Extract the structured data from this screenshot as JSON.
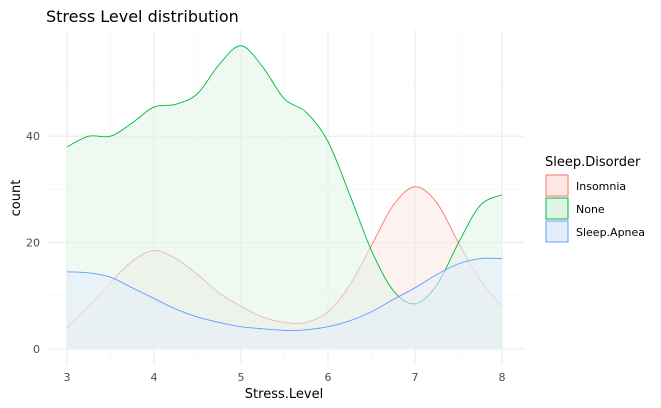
{
  "chart_data": {
    "type": "area",
    "title": "Stress Level distribution",
    "xlabel": "Stress.Level",
    "ylabel": "count",
    "xlim": [
      3,
      8
    ],
    "ylim": [
      0,
      58
    ],
    "x_ticks": [
      3,
      4,
      5,
      6,
      7,
      8
    ],
    "y_ticks": [
      0,
      20,
      40
    ],
    "grid": true,
    "legend": {
      "title": "Sleep.Disorder",
      "position": "right",
      "entries": [
        "Insomnia",
        "None",
        "Sleep.Apnea"
      ]
    },
    "series": [
      {
        "name": "Insomnia",
        "line_color": "#f8766d",
        "fill_color": "#fde8e6",
        "x": [
          3,
          3.25,
          3.5,
          3.75,
          4,
          4.25,
          4.5,
          4.75,
          5,
          5.25,
          5.5,
          5.75,
          6,
          6.25,
          6.5,
          6.75,
          7,
          7.25,
          7.5,
          7.75,
          8
        ],
        "y": [
          4,
          8,
          12.5,
          16.5,
          18.5,
          17,
          14,
          10.5,
          8,
          6,
          5,
          5,
          7,
          12,
          19.5,
          27,
          30.5,
          27.5,
          20,
          13,
          8
        ]
      },
      {
        "name": "None",
        "line_color": "#00ba38",
        "fill_color": "#dff4e5",
        "x": [
          3,
          3.25,
          3.5,
          3.75,
          4,
          4.25,
          4.5,
          4.75,
          5,
          5.25,
          5.5,
          5.75,
          6,
          6.25,
          6.5,
          6.75,
          7,
          7.25,
          7.5,
          7.75,
          8
        ],
        "y": [
          38,
          40,
          40,
          42.5,
          45.5,
          46,
          48,
          53.5,
          57,
          53,
          47,
          44.5,
          39,
          29,
          18.5,
          11,
          8.5,
          12,
          20,
          27,
          29
        ]
      },
      {
        "name": "Sleep.Apnea",
        "line_color": "#619cff",
        "fill_color": "#e4edfc",
        "x": [
          3,
          3.25,
          3.5,
          3.75,
          4,
          4.25,
          4.5,
          4.75,
          5,
          5.25,
          5.5,
          5.75,
          6,
          6.25,
          6.5,
          6.75,
          7,
          7.25,
          7.5,
          7.75,
          8
        ],
        "y": [
          14.5,
          14.3,
          13.5,
          11.5,
          9.5,
          7.5,
          6,
          5,
          4.2,
          3.8,
          3.5,
          3.6,
          4.2,
          5.3,
          7,
          9.3,
          11.5,
          14,
          16,
          17,
          17
        ]
      }
    ]
  }
}
